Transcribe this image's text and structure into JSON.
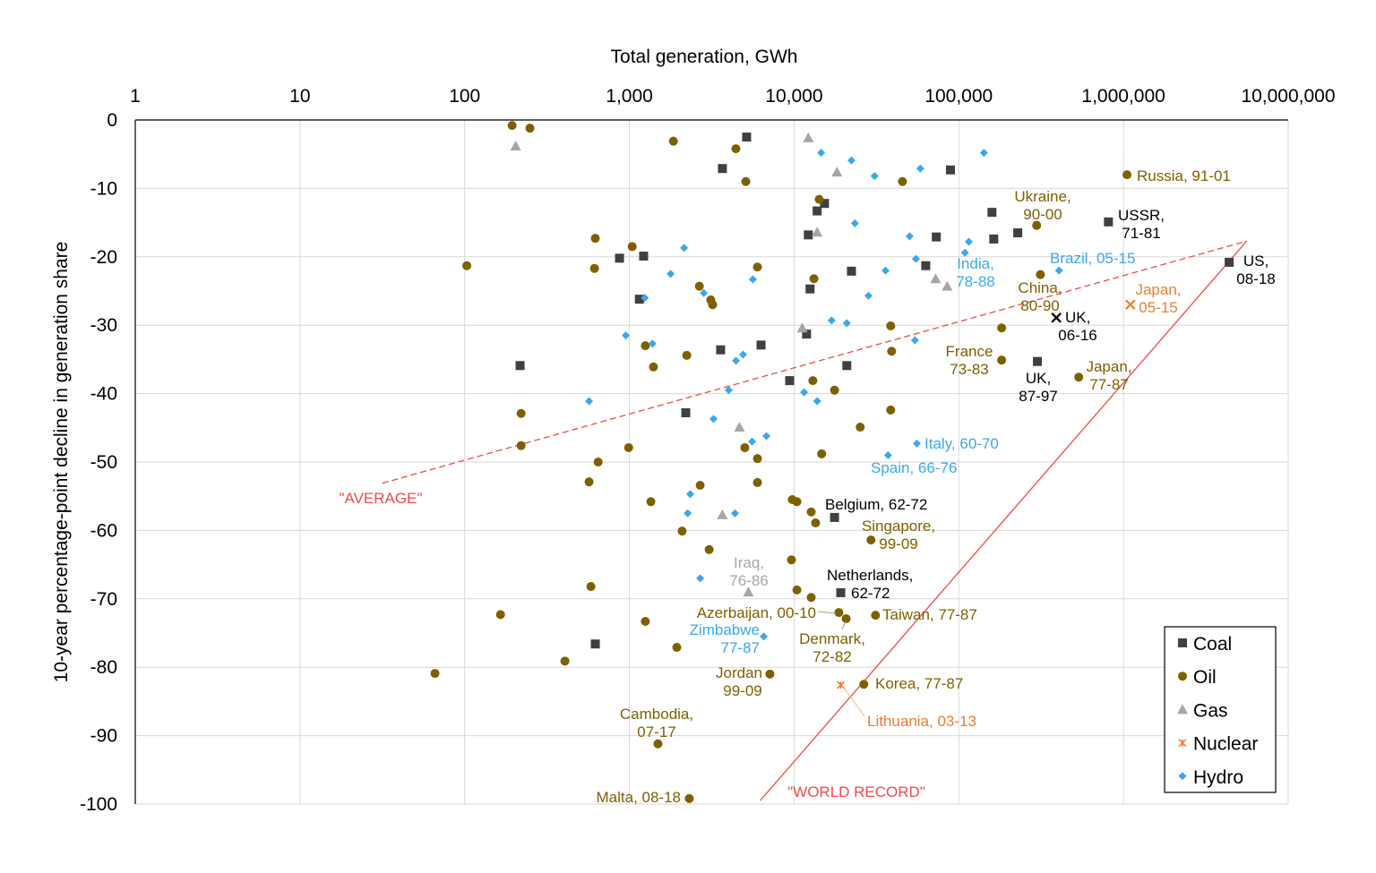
{
  "chart_data": {
    "type": "scatter",
    "xlabel": "Total generation, GWh",
    "ylabel": "10-year percentage-point decline in generation share",
    "xscale": "log",
    "xlim": [
      1,
      10000000
    ],
    "ylim": [
      -100,
      0
    ],
    "x_tick_values": [
      1,
      10,
      100,
      1000,
      10000,
      100000,
      1000000,
      10000000
    ],
    "x_tick_labels": [
      "1",
      "10",
      "100",
      "1,000",
      "10,000",
      "100,000",
      "1,000,000",
      "10,000,000"
    ],
    "y_tick_values": [
      0,
      -10,
      -20,
      -30,
      -40,
      -50,
      -60,
      -70,
      -80,
      -90,
      -100
    ],
    "y_tick_labels": [
      "0",
      "-10",
      "-20",
      "-30",
      "-40",
      "-50",
      "-60",
      "-70",
      "-80",
      "-90",
      "-100"
    ],
    "grid": true,
    "legend": {
      "position": "bottom-right",
      "entries": [
        "Coal",
        "Oil",
        "Gas",
        "Nuclear",
        "Hydro"
      ]
    },
    "series": [
      {
        "name": "Coal",
        "marker": "square",
        "color": "#404040",
        "points": [
          [
            5150,
            -2.5
          ],
          [
            3670,
            -7.1
          ],
          [
            89000,
            -7.3
          ],
          [
            15300,
            -12.2
          ],
          [
            13800,
            -13.3
          ],
          [
            12200,
            -16.8
          ],
          [
            159000,
            -13.5
          ],
          [
            163000,
            -17.4
          ],
          [
            228000,
            -16.5
          ],
          [
            73000,
            -17.1
          ],
          [
            63000,
            -21.3
          ],
          [
            810000,
            -14.9
          ],
          [
            4380000,
            -20.8
          ],
          [
            871,
            -20.2
          ],
          [
            1220,
            -19.9
          ],
          [
            1150,
            -26.2
          ],
          [
            22300,
            -22.1
          ],
          [
            12500,
            -24.7
          ],
          [
            11900,
            -31.3
          ],
          [
            3580,
            -33.6
          ],
          [
            6300,
            -32.9
          ],
          [
            20900,
            -35.9
          ],
          [
            300000,
            -35.3
          ],
          [
            217,
            -35.9
          ],
          [
            9400,
            -38.1
          ],
          [
            2200,
            -42.8
          ],
          [
            17600,
            -58.1
          ],
          [
            19200,
            -69.1
          ],
          [
            621,
            -76.6
          ]
        ]
      },
      {
        "name": "Oil",
        "marker": "circle",
        "color": "#7f6000",
        "points": [
          [
            194,
            -0.8
          ],
          [
            249,
            -1.2
          ],
          [
            1850,
            -3.1
          ],
          [
            4430,
            -4.2
          ],
          [
            5090,
            -9.0
          ],
          [
            14200,
            -11.6
          ],
          [
            45500,
            -9.0
          ],
          [
            297000,
            -15.4
          ],
          [
            1050000,
            -8.0
          ],
          [
            621,
            -17.3
          ],
          [
            1040,
            -18.5
          ],
          [
            103,
            -21.3
          ],
          [
            614,
            -21.7
          ],
          [
            5990,
            -21.5
          ],
          [
            13200,
            -23.2
          ],
          [
            313000,
            -22.6
          ],
          [
            2660,
            -24.3
          ],
          [
            3120,
            -26.3
          ],
          [
            3200,
            -27.0
          ],
          [
            38600,
            -30.1
          ],
          [
            182000,
            -30.4
          ],
          [
            1250,
            -33.0
          ],
          [
            1400,
            -36.1
          ],
          [
            2230,
            -34.4
          ],
          [
            39100,
            -33.8
          ],
          [
            182000,
            -35.1
          ],
          [
            535000,
            -37.6
          ],
          [
            13000,
            -38.1
          ],
          [
            17600,
            -39.5
          ],
          [
            220,
            -42.9
          ],
          [
            38600,
            -42.4
          ],
          [
            25200,
            -44.9
          ],
          [
            220,
            -47.6
          ],
          [
            990,
            -47.9
          ],
          [
            5020,
            -47.9
          ],
          [
            646,
            -50.0
          ],
          [
            14700,
            -48.8
          ],
          [
            5990,
            -49.5
          ],
          [
            569,
            -52.9
          ],
          [
            5990,
            -53.0
          ],
          [
            2690,
            -53.4
          ],
          [
            1350,
            -55.8
          ],
          [
            9750,
            -55.5
          ],
          [
            10400,
            -55.8
          ],
          [
            12700,
            -57.3
          ],
          [
            13500,
            -58.9
          ],
          [
            29300,
            -61.4
          ],
          [
            2090,
            -60.1
          ],
          [
            3050,
            -62.8
          ],
          [
            9640,
            -64.3
          ],
          [
            584,
            -68.2
          ],
          [
            10400,
            -68.7
          ],
          [
            12700,
            -69.8
          ],
          [
            165,
            -72.3
          ],
          [
            1250,
            -73.3
          ],
          [
            18700,
            -72.0
          ],
          [
            20700,
            -72.9
          ],
          [
            31200,
            -72.4
          ],
          [
            1940,
            -77.1
          ],
          [
            406,
            -79.1
          ],
          [
            66,
            -80.9
          ],
          [
            7130,
            -81.0
          ],
          [
            26500,
            -82.5
          ],
          [
            1490,
            -91.2
          ],
          [
            2310,
            -99.2
          ]
        ]
      },
      {
        "name": "Gas",
        "marker": "triangle",
        "color": "#a6a6a6",
        "points": [
          [
            204,
            -3.8
          ],
          [
            12200,
            -2.6
          ],
          [
            18200,
            -7.6
          ],
          [
            13800,
            -16.4
          ],
          [
            72300,
            -23.2
          ],
          [
            85000,
            -24.3
          ],
          [
            11200,
            -30.4
          ],
          [
            4660,
            -44.9
          ],
          [
            3670,
            -57.7
          ],
          [
            5280,
            -69.0
          ]
        ]
      },
      {
        "name": "Nuclear",
        "marker": "asterisk",
        "color": "#ed7d31",
        "points": [
          [
            1100000,
            -27.0
          ],
          [
            19200,
            -82.6
          ]
        ]
      },
      {
        "name": "Hydro",
        "marker": "diamond",
        "color": "#3aa8ec",
        "points": [
          [
            14600,
            -4.8
          ],
          [
            22300,
            -5.9
          ],
          [
            30800,
            -8.2
          ],
          [
            58400,
            -7.1
          ],
          [
            142000,
            -4.8
          ],
          [
            23400,
            -15.1
          ],
          [
            50300,
            -17.0
          ],
          [
            115000,
            -17.8
          ],
          [
            109000,
            -19.4
          ],
          [
            54900,
            -20.3
          ],
          [
            35900,
            -22.0
          ],
          [
            406000,
            -22.0
          ],
          [
            2150,
            -18.7
          ],
          [
            1780,
            -22.5
          ],
          [
            1240,
            -26.0
          ],
          [
            2830,
            -25.3
          ],
          [
            5620,
            -23.3
          ],
          [
            28300,
            -25.7
          ],
          [
            16900,
            -29.3
          ],
          [
            20900,
            -29.7
          ],
          [
            54200,
            -32.2
          ],
          [
            951,
            -31.5
          ],
          [
            1380,
            -32.7
          ],
          [
            4900,
            -34.3
          ],
          [
            4440,
            -35.2
          ],
          [
            4010,
            -39.5
          ],
          [
            11500,
            -39.8
          ],
          [
            13800,
            -41.1
          ],
          [
            569,
            -41.1
          ],
          [
            3240,
            -43.7
          ],
          [
            6790,
            -46.2
          ],
          [
            5560,
            -47.0
          ],
          [
            55600,
            -47.3
          ],
          [
            37200,
            -49.0
          ],
          [
            2340,
            -54.7
          ],
          [
            2260,
            -57.5
          ],
          [
            4380,
            -57.5
          ],
          [
            2690,
            -67.0
          ],
          [
            6540,
            -75.5
          ]
        ]
      }
    ],
    "highlight_points": [
      {
        "label": "UK, 06-16",
        "marker": "x",
        "color": "#000000",
        "point": [
          391000,
          -28.9
        ]
      }
    ],
    "reference_lines": [
      {
        "label": "\"AVERAGE\"",
        "style": "dashed",
        "color": "#f04a4a",
        "from": [
          31.6,
          -53.1
        ],
        "to": [
          5600000,
          -17.7
        ]
      },
      {
        "label": "\"WORLD RECORD\"",
        "style": "solid",
        "color": "#f04a4a",
        "from": [
          6220,
          -99.5
        ],
        "to": [
          5600000,
          -17.7
        ]
      }
    ],
    "annotations": [
      {
        "lines": [
          "Russia, 91-01"
        ],
        "color": "#7f6000"
      },
      {
        "lines": [
          "Ukraine,",
          "90-00"
        ],
        "color": "#7f6000"
      },
      {
        "lines": [
          "USSR,",
          "71-81"
        ],
        "color": "#000000"
      },
      {
        "lines": [
          "US,",
          "08-18"
        ],
        "color": "#000000"
      },
      {
        "lines": [
          "India,",
          "78-88"
        ],
        "color": "#3aa8ec"
      },
      {
        "lines": [
          "Brazil, 05-15"
        ],
        "color": "#3aa8ec"
      },
      {
        "lines": [
          "China,",
          "80-90"
        ],
        "color": "#7f6000"
      },
      {
        "lines": [
          "Japan,",
          "05-15"
        ],
        "color": "#ed7d31"
      },
      {
        "lines": [
          "UK,",
          "06-16"
        ],
        "color": "#000000"
      },
      {
        "lines": [
          "France",
          "73-83"
        ],
        "color": "#7f6000"
      },
      {
        "lines": [
          "UK,",
          "87-97"
        ],
        "color": "#000000"
      },
      {
        "lines": [
          "Japan,",
          "77-87"
        ],
        "color": "#7f6000"
      },
      {
        "lines": [
          "Italy, 60-70"
        ],
        "color": "#3aa8ec"
      },
      {
        "lines": [
          "Spain, 66-76"
        ],
        "color": "#3aa8ec"
      },
      {
        "lines": [
          "Belgium, 62-72"
        ],
        "color": "#000000"
      },
      {
        "lines": [
          "Singapore,",
          "99-09"
        ],
        "color": "#7f6000"
      },
      {
        "lines": [
          "Iraq,",
          "76-86"
        ],
        "color": "#a6a6a6"
      },
      {
        "lines": [
          "Netherlands,",
          "62-72"
        ],
        "color": "#000000"
      },
      {
        "lines": [
          "Azerbaijan, 00-10"
        ],
        "color": "#7f6000"
      },
      {
        "lines": [
          "Taiwan, 77-87"
        ],
        "color": "#7f6000"
      },
      {
        "lines": [
          "Zimbabwe",
          "77-87"
        ],
        "color": "#3aa8ec"
      },
      {
        "lines": [
          "Denmark,",
          "72-82"
        ],
        "color": "#7f6000"
      },
      {
        "lines": [
          "Jordan",
          "99-09"
        ],
        "color": "#7f6000"
      },
      {
        "lines": [
          "Korea, 77-87"
        ],
        "color": "#7f6000"
      },
      {
        "lines": [
          "Lithuania, 03-13"
        ],
        "color": "#ed7d31"
      },
      {
        "lines": [
          "Cambodia,",
          "07-17"
        ],
        "color": "#7f6000"
      },
      {
        "lines": [
          "Malta, 08-18"
        ],
        "color": "#7f6000"
      },
      {
        "lines": [
          "\"AVERAGE\""
        ],
        "color": "#f04a4a"
      },
      {
        "lines": [
          "\"WORLD RECORD\""
        ],
        "color": "#f04a4a"
      }
    ]
  }
}
